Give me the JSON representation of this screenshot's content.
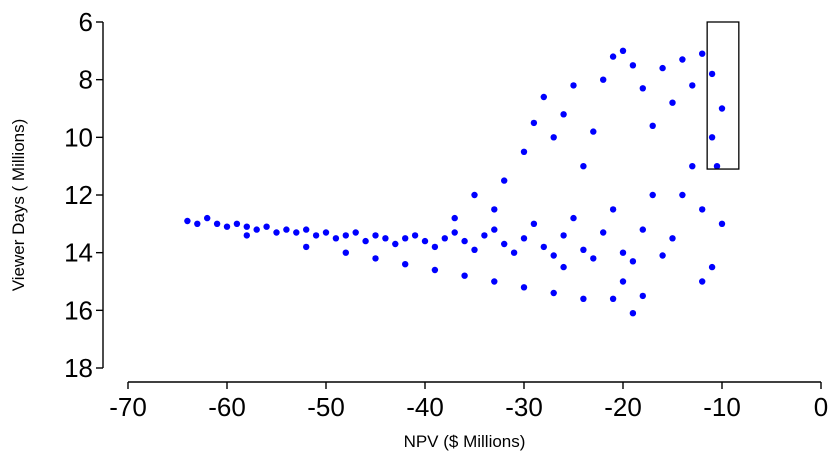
{
  "chart_data": {
    "type": "scatter",
    "xlabel": "NPV ($ Millions)",
    "ylabel": "Viewer Days ( Millions)",
    "xlim": [
      -70,
      0
    ],
    "ylim": [
      18,
      6
    ],
    "y_inverted": true,
    "x_ticks": [
      -70,
      -60,
      -50,
      -40,
      -30,
      -20,
      -10,
      0
    ],
    "y_ticks": [
      6,
      8,
      10,
      12,
      14,
      16,
      18
    ],
    "x_tick_labels": [
      "-70",
      "-60",
      "-50",
      "-40",
      "-30",
      "-20",
      "-10",
      "0"
    ],
    "y_tick_labels": [
      "6",
      "8",
      "10",
      "12",
      "14",
      "16",
      "18"
    ],
    "grid": false,
    "point_color": "#0000ff",
    "highlight_box": {
      "x": [
        -11.5,
        -8.3
      ],
      "y": [
        6.0,
        11.1
      ]
    },
    "series": [
      {
        "points": [
          [
            -64,
            12.9
          ],
          [
            -63,
            13.0
          ],
          [
            -62,
            12.8
          ],
          [
            -61,
            13.0
          ],
          [
            -60,
            13.1
          ],
          [
            -59,
            13.0
          ],
          [
            -58,
            13.1
          ],
          [
            -57,
            13.2
          ],
          [
            -56,
            13.1
          ],
          [
            -55,
            13.3
          ],
          [
            -54,
            13.2
          ],
          [
            -53,
            13.3
          ],
          [
            -52,
            13.2
          ],
          [
            -51,
            13.4
          ],
          [
            -50,
            13.3
          ],
          [
            -49,
            13.5
          ],
          [
            -48,
            13.4
          ],
          [
            -47,
            13.3
          ],
          [
            -46,
            13.6
          ],
          [
            -45,
            13.4
          ],
          [
            -44,
            13.5
          ],
          [
            -43,
            13.7
          ],
          [
            -42,
            13.5
          ],
          [
            -41,
            13.4
          ],
          [
            -40,
            13.6
          ],
          [
            -39,
            13.8
          ],
          [
            -38,
            13.5
          ],
          [
            -37,
            13.3
          ],
          [
            -36,
            13.6
          ],
          [
            -35,
            13.9
          ],
          [
            -34,
            13.4
          ],
          [
            -33,
            13.2
          ],
          [
            -32,
            13.7
          ],
          [
            -31,
            14.0
          ],
          [
            -30,
            13.5
          ],
          [
            -29,
            13.0
          ],
          [
            -28,
            13.8
          ],
          [
            -27,
            14.1
          ],
          [
            -26,
            13.4
          ],
          [
            -25,
            12.8
          ],
          [
            -24,
            13.9
          ],
          [
            -23,
            14.2
          ],
          [
            -22,
            13.3
          ],
          [
            -21,
            12.5
          ],
          [
            -20,
            14.0
          ],
          [
            -19,
            14.3
          ],
          [
            -18,
            13.2
          ],
          [
            -17,
            12.0
          ],
          [
            -16,
            14.1
          ],
          [
            -15,
            13.5
          ],
          [
            -14,
            12.0
          ],
          [
            -13,
            11.0
          ],
          [
            -12,
            12.5
          ],
          [
            -11,
            10.0
          ],
          [
            -10,
            9.0
          ],
          [
            -58,
            13.4
          ],
          [
            -52,
            13.8
          ],
          [
            -48,
            14.0
          ],
          [
            -45,
            14.2
          ],
          [
            -42,
            14.4
          ],
          [
            -39,
            14.6
          ],
          [
            -36,
            14.8
          ],
          [
            -33,
            15.0
          ],
          [
            -30,
            15.2
          ],
          [
            -27,
            15.4
          ],
          [
            -24,
            15.6
          ],
          [
            -21,
            15.6
          ],
          [
            -19,
            16.1
          ],
          [
            -18,
            15.5
          ],
          [
            -35,
            12.0
          ],
          [
            -32,
            11.5
          ],
          [
            -30,
            10.5
          ],
          [
            -29,
            9.5
          ],
          [
            -28,
            8.6
          ],
          [
            -27,
            10.0
          ],
          [
            -26,
            9.2
          ],
          [
            -25,
            8.2
          ],
          [
            -24,
            11.0
          ],
          [
            -23,
            9.8
          ],
          [
            -22,
            8.0
          ],
          [
            -21,
            7.2
          ],
          [
            -20,
            7.0
          ],
          [
            -19,
            7.5
          ],
          [
            -18,
            8.3
          ],
          [
            -17,
            9.6
          ],
          [
            -16,
            7.6
          ],
          [
            -15,
            8.8
          ],
          [
            -14,
            7.3
          ],
          [
            -13,
            8.2
          ],
          [
            -12,
            7.1
          ],
          [
            -11,
            7.8
          ],
          [
            -10.5,
            11.0
          ],
          [
            -10,
            13.0
          ],
          [
            -11,
            14.5
          ],
          [
            -12,
            15.0
          ],
          [
            -20,
            15.0
          ],
          [
            -26,
            14.5
          ],
          [
            -37,
            12.8
          ],
          [
            -33,
            12.5
          ]
        ]
      }
    ]
  }
}
